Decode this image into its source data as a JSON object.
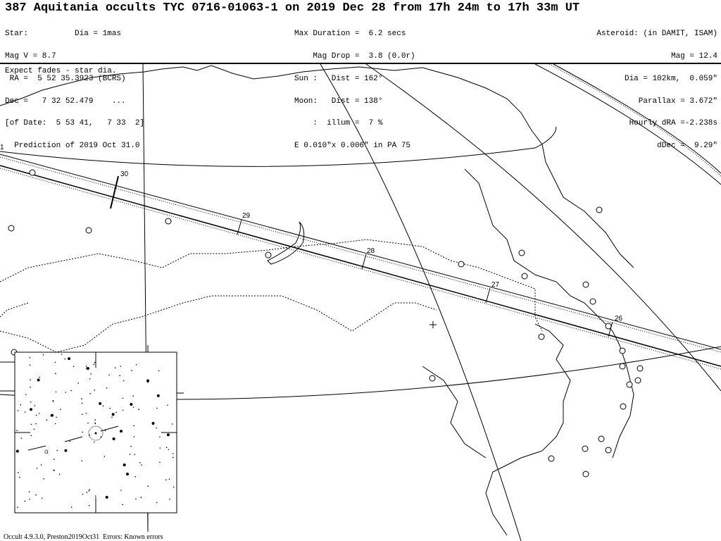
{
  "title": "387 Aquitania occults TYC 0716-01063-1 on 2019 Dec 28 from 17h 24m to 17h 33m UT",
  "star_block": [
    "Star:          Dia = 1mas",
    "Mag V = 8.7",
    " RA =  5 52 35.3923 (BCRS)",
    "Dec =   7 32 52.479    ...",
    "[of Date:  5 53 41,   7 33  2]",
    "  Prediction of 2019 Oct 31.0"
  ],
  "event_block": [
    "Max Duration =  6.2 secs",
    "    Mag Drop =  3.8 (0.0r)",
    "Sun :   Dist = 162°",
    "Moon:   Dist = 138°",
    "    :  illum =  7 %",
    "E 0.010\"x 0.006\" in PA 75"
  ],
  "asteroid_block": [
    "Asteroid: (in DAMIT, ISAM)",
    "Mag = 12.4",
    "Dia = 102km,  0.059\"",
    "Parallax = 3.672\"",
    "Hourly dRA =-2.238s",
    "dDec =  9.29\""
  ],
  "note": "Expect fades - star dia.",
  "path_time_labels": [
    "1",
    "30",
    "29",
    "28",
    "27",
    "26"
  ],
  "inset": {
    "star_label": "α"
  },
  "footer": "Occult 4.9.3.0, Preston2019Oct31  Errors: Known errors"
}
